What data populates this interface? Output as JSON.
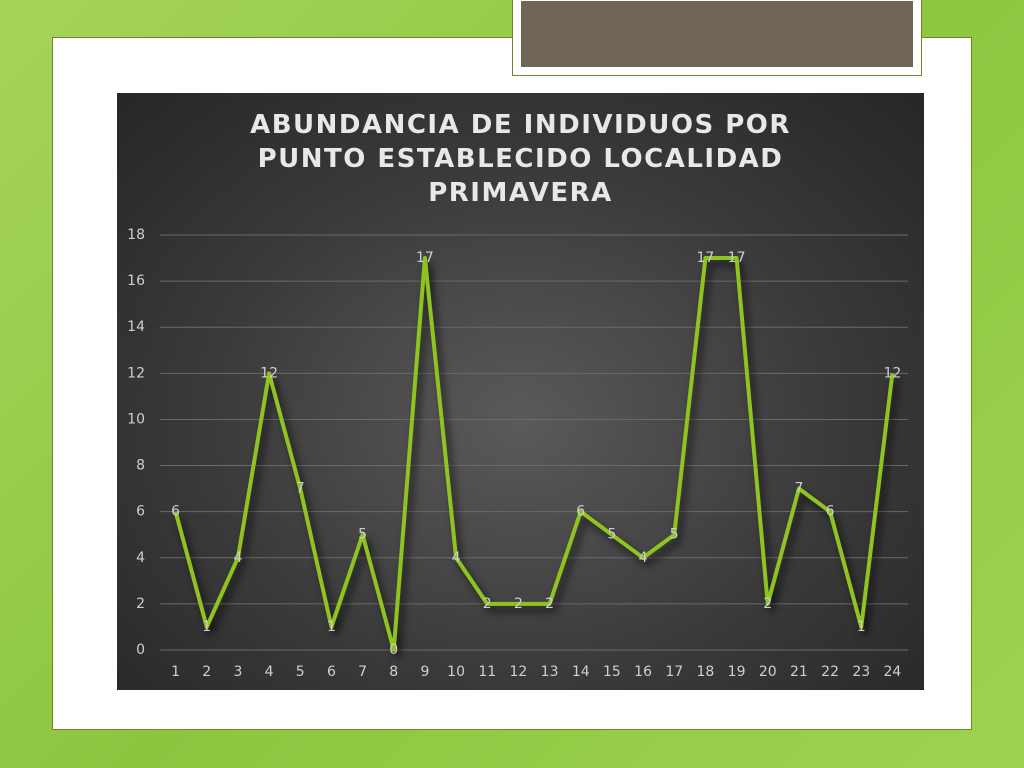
{
  "chart_data": {
    "type": "line",
    "title": "ABUNDANCIA DE INDIVIDUOS POR PUNTO ESTABLECIDO LOCALIDAD PRIMAVERA",
    "categories": [
      "1",
      "2",
      "3",
      "4",
      "5",
      "6",
      "7",
      "8",
      "9",
      "10",
      "11",
      "12",
      "13",
      "14",
      "15",
      "16",
      "17",
      "18",
      "19",
      "20",
      "21",
      "22",
      "23",
      "24"
    ],
    "values": [
      6,
      1,
      4,
      12,
      7,
      1,
      5,
      0,
      17,
      4,
      2,
      2,
      2,
      6,
      5,
      4,
      5,
      17,
      17,
      2,
      7,
      6,
      1,
      12
    ],
    "color": "#8fc31f",
    "ylim": [
      0,
      18
    ],
    "yticks": [
      0,
      2,
      4,
      6,
      8,
      10,
      12,
      14,
      16,
      18
    ],
    "grid": true,
    "data_labels": true
  }
}
